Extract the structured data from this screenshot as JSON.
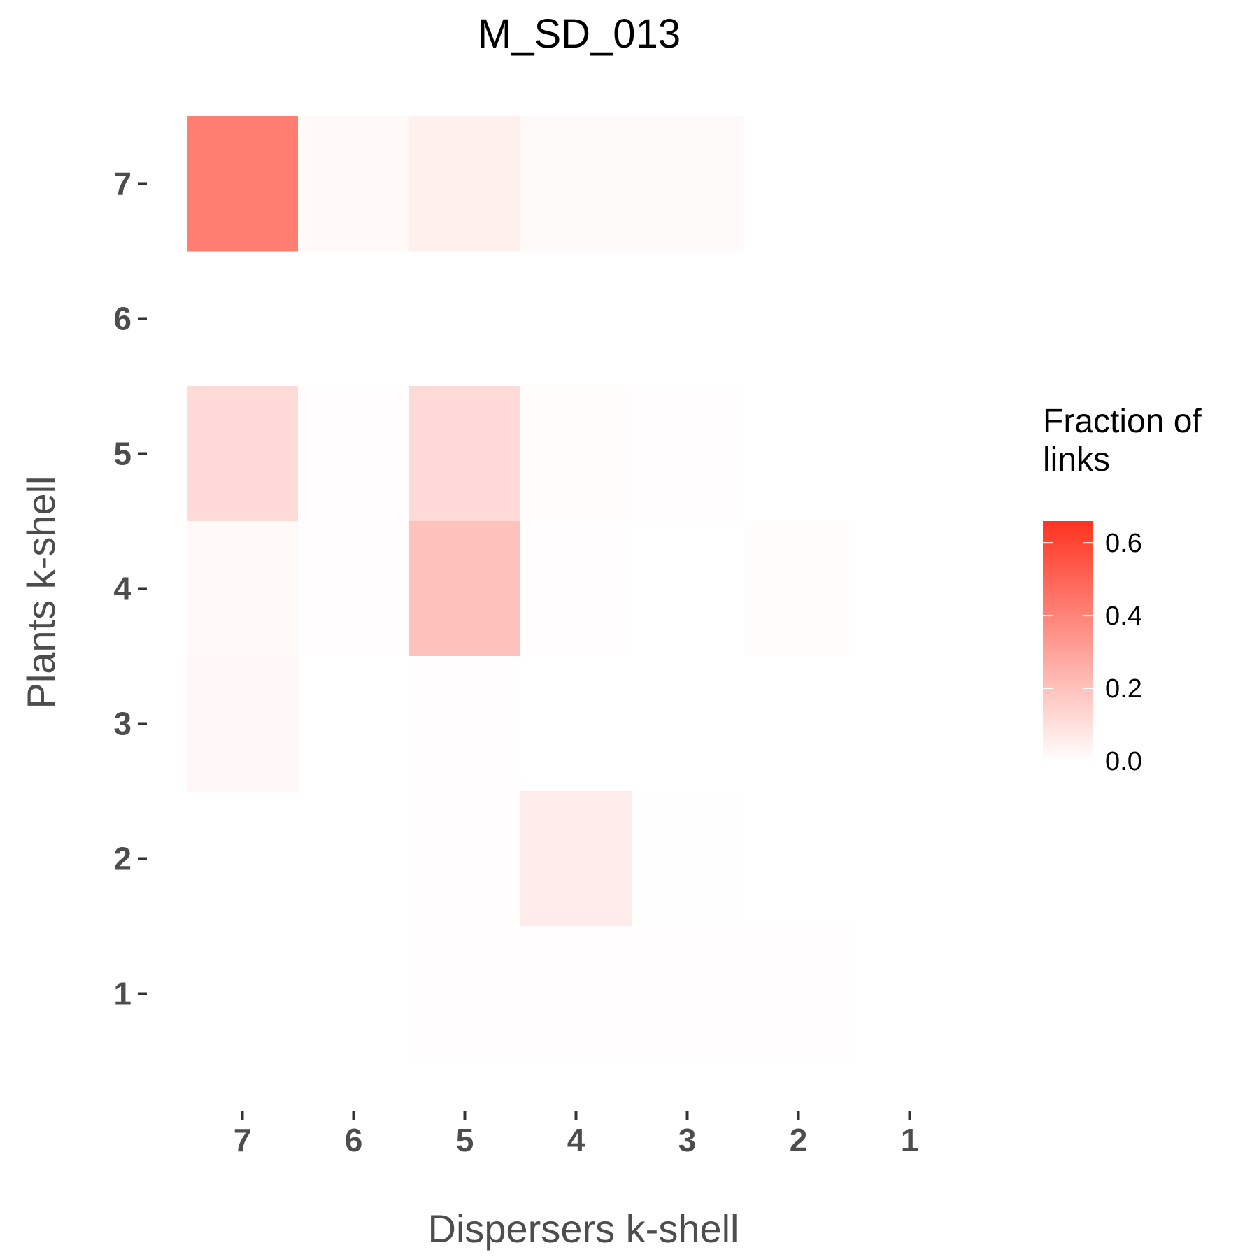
{
  "chart_data": {
    "type": "heatmap",
    "title": "M_SD_013",
    "xlabel": "Dispersers k-shell",
    "ylabel": "Plants k-shell",
    "x_categories": [
      "7",
      "6",
      "5",
      "4",
      "3",
      "2",
      "1"
    ],
    "y_categories": [
      "7",
      "6",
      "5",
      "4",
      "3",
      "2",
      "1"
    ],
    "cells": [
      {
        "x": "7",
        "y": "7",
        "value": 0.42
      },
      {
        "x": "6",
        "y": "7",
        "value": 0.02
      },
      {
        "x": "5",
        "y": "7",
        "value": 0.05
      },
      {
        "x": "4",
        "y": "7",
        "value": 0.015
      },
      {
        "x": "3",
        "y": "7",
        "value": 0.015
      },
      {
        "x": "7",
        "y": "5",
        "value": 0.12
      },
      {
        "x": "6",
        "y": "5",
        "value": 0.005
      },
      {
        "x": "5",
        "y": "5",
        "value": 0.12
      },
      {
        "x": "4",
        "y": "5",
        "value": 0.01
      },
      {
        "x": "3",
        "y": "5",
        "value": 0.005
      },
      {
        "x": "7",
        "y": "4",
        "value": 0.02
      },
      {
        "x": "6",
        "y": "4",
        "value": 0.005
      },
      {
        "x": "5",
        "y": "4",
        "value": 0.2
      },
      {
        "x": "4",
        "y": "4",
        "value": 0.005
      },
      {
        "x": "2",
        "y": "4",
        "value": 0.01
      },
      {
        "x": "7",
        "y": "3",
        "value": 0.025
      },
      {
        "x": "5",
        "y": "3",
        "value": 0.005
      },
      {
        "x": "5",
        "y": "2",
        "value": 0.005
      },
      {
        "x": "4",
        "y": "2",
        "value": 0.06
      },
      {
        "x": "3",
        "y": "2",
        "value": 0.003
      },
      {
        "x": "5",
        "y": "1",
        "value": 0.005
      },
      {
        "x": "4",
        "y": "1",
        "value": 0.005
      },
      {
        "x": "3",
        "y": "1",
        "value": 0.005
      },
      {
        "x": "2",
        "y": "1",
        "value": 0.005
      }
    ],
    "legend": {
      "title": "Fraction of links",
      "title_lines": [
        "Fraction of",
        "links"
      ],
      "ticks": [
        "0.0",
        "0.2",
        "0.4",
        "0.6"
      ],
      "tick_values": [
        0.0,
        0.2,
        0.4,
        0.6
      ],
      "min": 0.0,
      "max": 0.66,
      "color_low": "#ffffff",
      "color_high": "#ff3320",
      "placement": "right"
    },
    "grid": false
  }
}
